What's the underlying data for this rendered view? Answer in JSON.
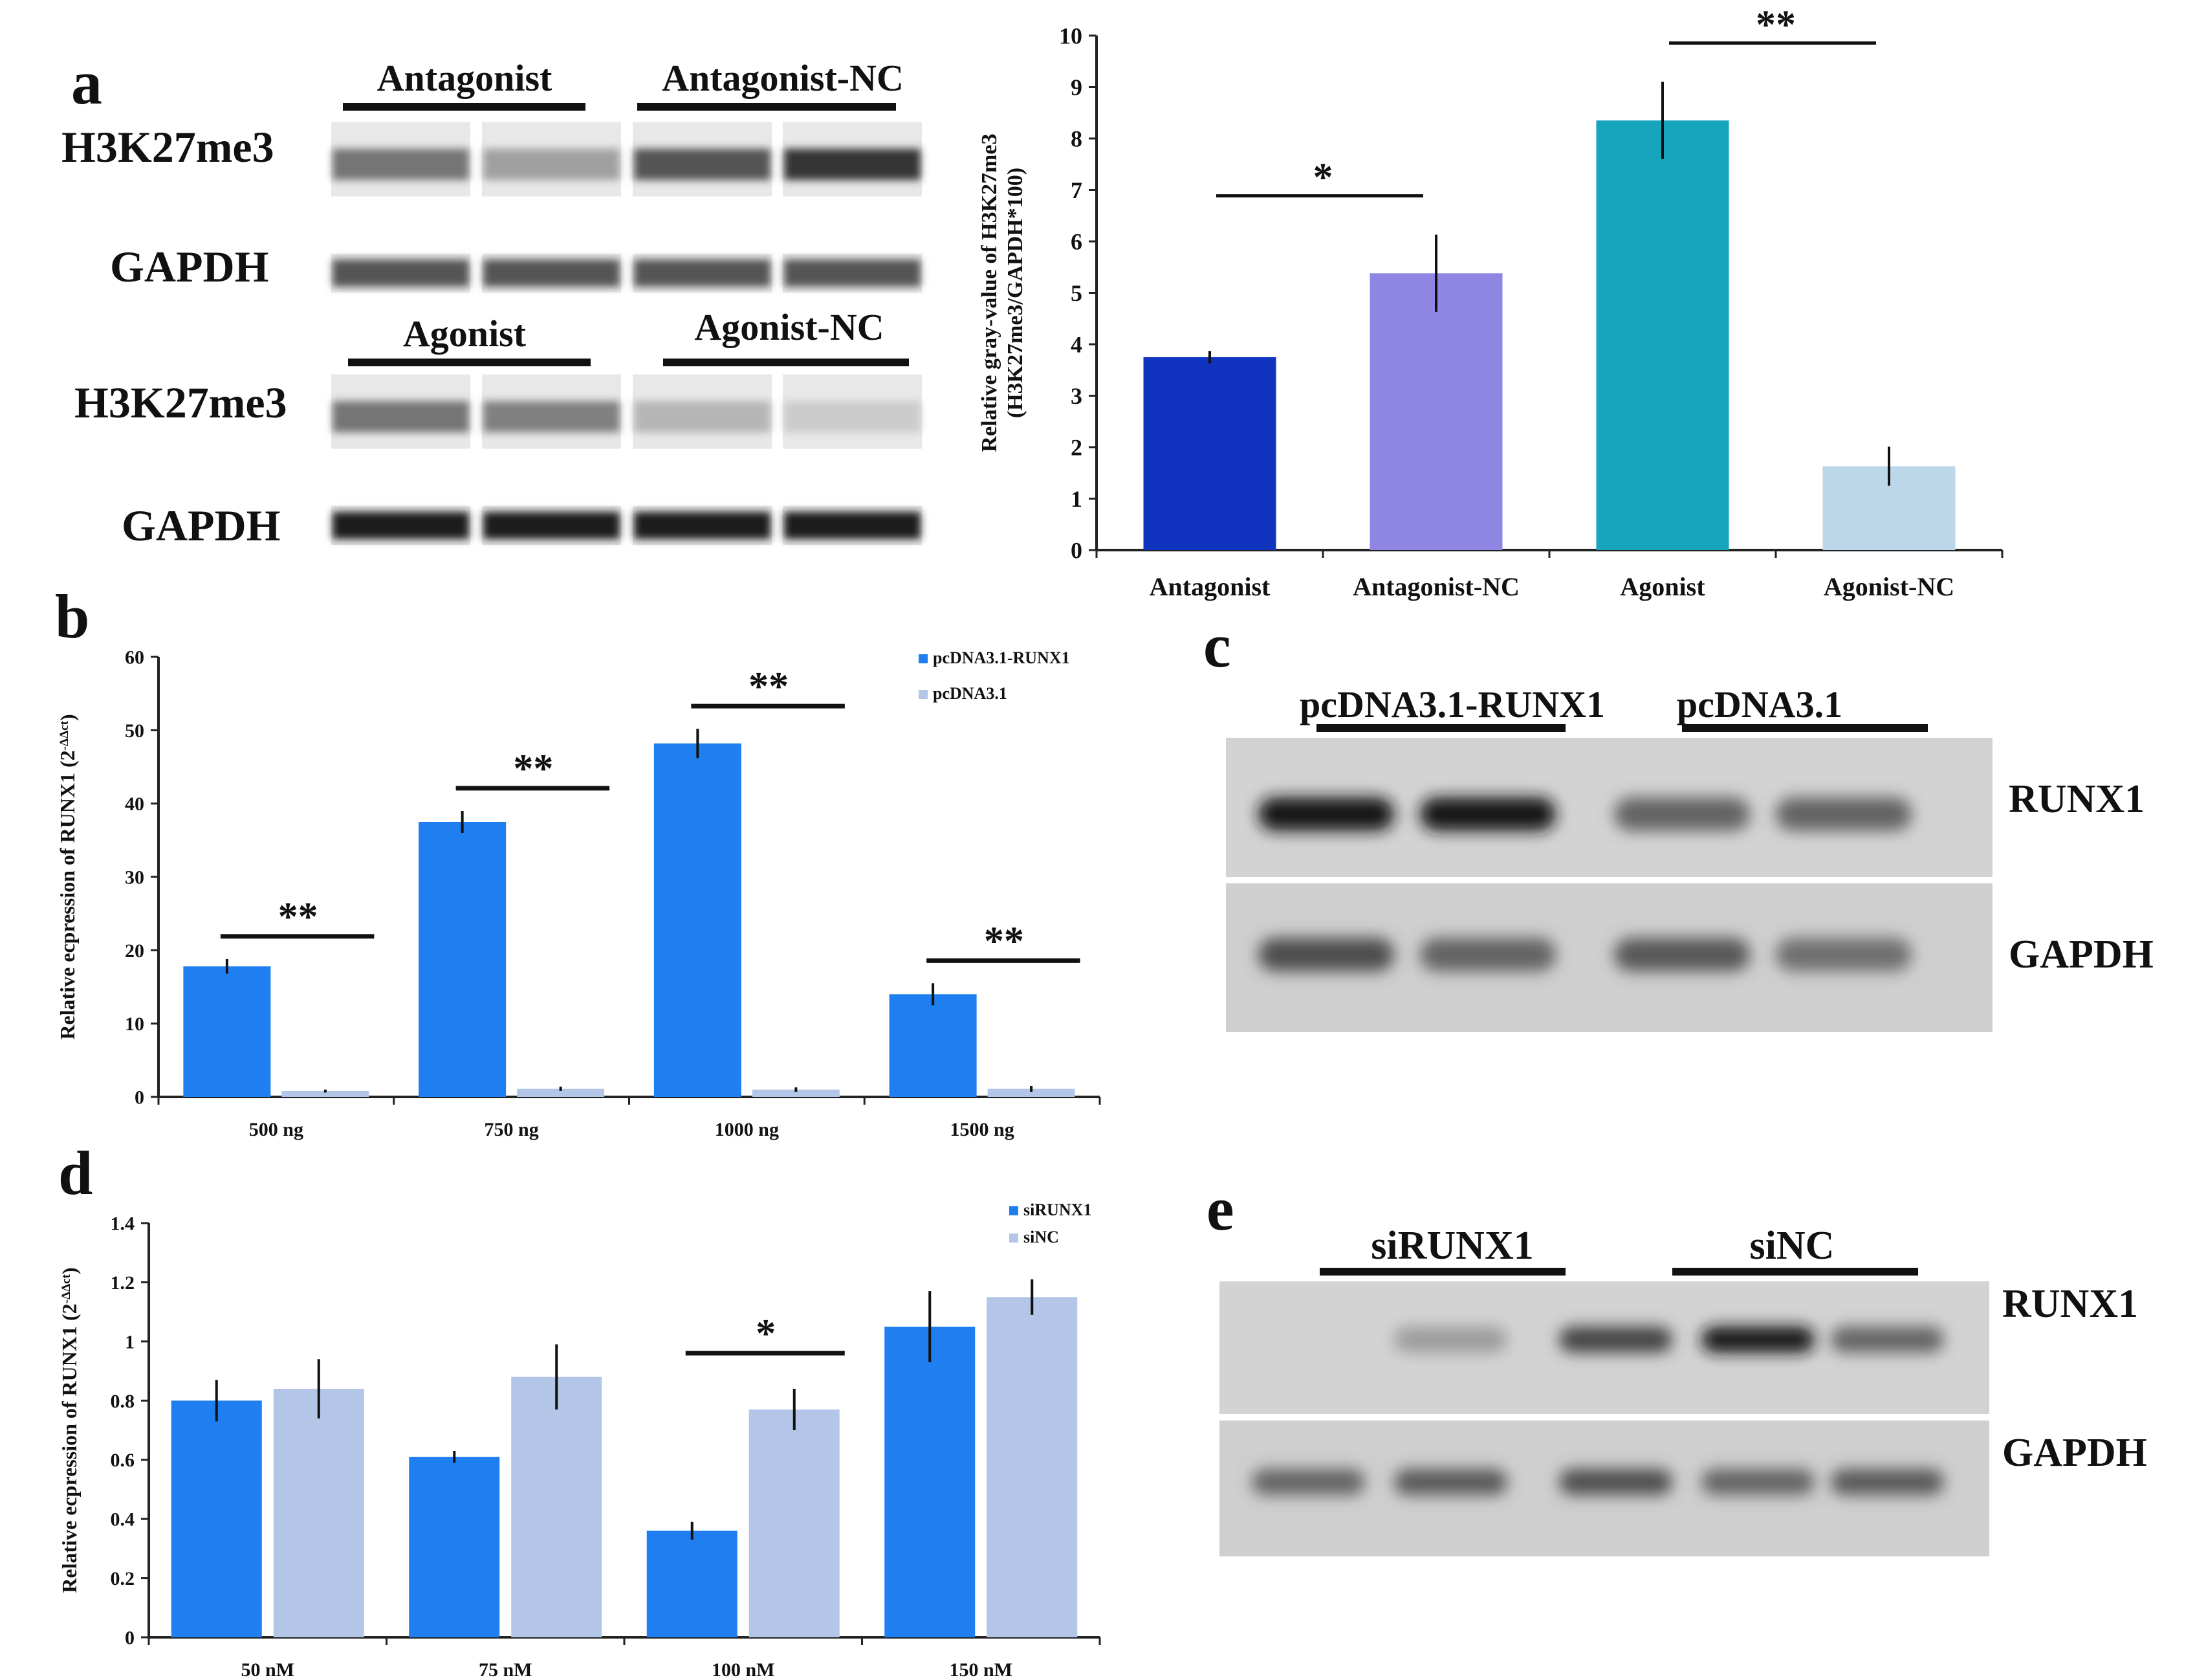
{
  "panels": {
    "a": {
      "letter": "a",
      "blot": {
        "rows": [
          {
            "label": "H3K27me3",
            "group_labels": [
              "Antagonist",
              "Antagonist-NC"
            ]
          },
          {
            "label": "GAPDH",
            "group_labels": []
          },
          {
            "label": "H3K27me3",
            "group_labels": [
              "Agonist",
              "Agonist-NC"
            ]
          },
          {
            "label": "GAPDH",
            "group_labels": []
          }
        ],
        "lane_intensity": [
          [
            0.55,
            0.35,
            0.7,
            0.85
          ],
          [
            0.7,
            0.7,
            0.7,
            0.7
          ],
          [
            0.55,
            0.5,
            0.25,
            0.15
          ],
          [
            0.95,
            0.95,
            0.95,
            0.95
          ]
        ]
      }
    },
    "b": {
      "letter": "b"
    },
    "c": {
      "letter": "c",
      "groups": [
        "pcDNA3.1-RUNX1",
        "pcDNA3.1"
      ],
      "bands": [
        "RUNX1",
        "GAPDH"
      ],
      "lane_intensity": [
        [
          0.95,
          0.95,
          0.6,
          0.6
        ],
        [
          0.7,
          0.6,
          0.65,
          0.55
        ]
      ]
    },
    "d": {
      "letter": "d"
    },
    "e": {
      "letter": "e",
      "groups": [
        "siRUNX1",
        "siNC"
      ],
      "bands": [
        "RUNX1",
        "GAPDH"
      ],
      "lane_intensity": [
        [
          0.0,
          0.35,
          0.75,
          0.95,
          0.6
        ],
        [
          0.6,
          0.65,
          0.7,
          0.6,
          0.65
        ]
      ]
    }
  },
  "colors": {
    "blue": "#1f7ef0",
    "light_blue": "#b3c6e7",
    "antagonist": "#1034c0",
    "antagonist_nc": "#8f86e4",
    "agonist": "#17a5be",
    "agonist_nc": "#bcd6ea"
  },
  "chart_data": [
    {
      "id": "a",
      "type": "bar",
      "categories": [
        "Antagonist",
        "Antagonist-NC",
        "Agonist",
        "Agonist-NC"
      ],
      "values": [
        3.75,
        5.38,
        8.35,
        1.63
      ],
      "errors": [
        0.12,
        0.75,
        0.75,
        0.38
      ],
      "ylabel": [
        "Relative gray-value of H3K27me3",
        "(H3K27me3/GAPDH*100)"
      ],
      "ylim": [
        0,
        10
      ],
      "yticks": [
        0,
        1,
        2,
        3,
        4,
        5,
        6,
        7,
        8,
        9,
        10
      ],
      "significance": [
        {
          "from": 0,
          "to": 1,
          "label": "*"
        },
        {
          "from": 2,
          "to": 3,
          "label": "**"
        }
      ]
    },
    {
      "id": "b",
      "type": "bar",
      "categories": [
        "500 ng",
        "750 ng",
        "1000 ng",
        "1500 ng"
      ],
      "series": [
        {
          "name": "pcDNA3.1-RUNX1",
          "values": [
            17.8,
            37.5,
            48.2,
            14.0
          ],
          "errors": [
            1.0,
            1.5,
            2.0,
            1.5
          ]
        },
        {
          "name": "pcDNA3.1",
          "values": [
            0.8,
            1.1,
            1.0,
            1.1
          ],
          "errors": [
            0.2,
            0.3,
            0.3,
            0.4
          ]
        }
      ],
      "ylabel": "Relative ecpression of RUNX1 (2",
      "ylabel_sup": "-ΔΔct",
      "ylabel_end": ")",
      "ylim": [
        0,
        60
      ],
      "yticks": [
        0,
        10,
        20,
        30,
        40,
        50,
        60
      ],
      "legend": "top-right",
      "significance": [
        {
          "category": 0,
          "label": "**"
        },
        {
          "category": 1,
          "label": "**"
        },
        {
          "category": 2,
          "label": "**"
        },
        {
          "category": 3,
          "label": "**"
        }
      ]
    },
    {
      "id": "d",
      "type": "bar",
      "categories": [
        "50 nM",
        "75 nM",
        "100 nM",
        "150 nM"
      ],
      "series": [
        {
          "name": "siRUNX1",
          "values": [
            0.8,
            0.61,
            0.36,
            1.05
          ],
          "errors": [
            0.07,
            0.02,
            0.03,
            0.12
          ]
        },
        {
          "name": "siNC",
          "values": [
            0.84,
            0.88,
            0.77,
            1.15
          ],
          "errors": [
            0.1,
            0.11,
            0.07,
            0.06
          ]
        }
      ],
      "ylabel": "Relative ecpression of RUNX1 (2",
      "ylabel_sup": "-ΔΔct",
      "ylabel_end": ")",
      "ylim": [
        0,
        1.4
      ],
      "yticks": [
        "0",
        "0.2",
        "0.4",
        "0.6",
        "0.8",
        "1",
        "1.2",
        "1.4"
      ],
      "legend": "top-right",
      "significance": [
        {
          "category": 2,
          "label": "*"
        }
      ]
    }
  ]
}
